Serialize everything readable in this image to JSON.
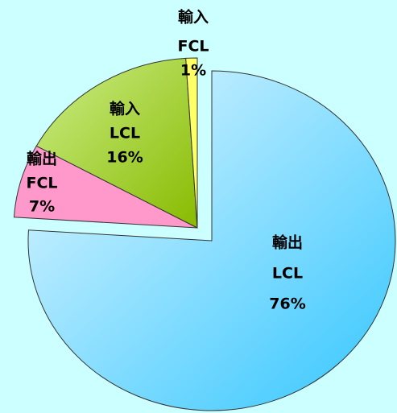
{
  "chart_data": {
    "type": "pie",
    "categories": [
      [
        "輸出",
        "LCL"
      ],
      [
        "輸出",
        "FCL"
      ],
      [
        "輸入",
        "LCL"
      ],
      [
        "輸入",
        "FCL"
      ]
    ],
    "values": [
      76,
      7,
      16,
      1
    ],
    "value_labels": [
      "76%",
      "7%",
      "16%",
      "1%"
    ],
    "colors": [
      "#66d4ff",
      "#ff99cc",
      "#99cc22",
      "#ffff66"
    ]
  }
}
